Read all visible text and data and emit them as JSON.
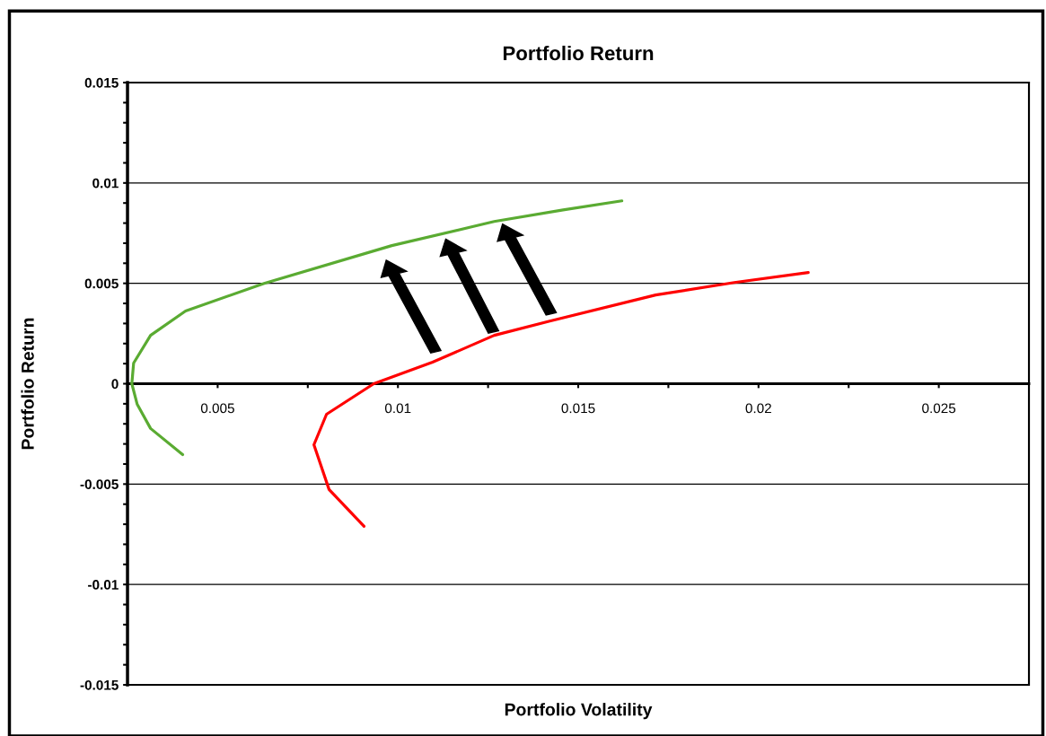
{
  "chart_data": {
    "type": "line",
    "title": "Portfolio Return",
    "xlabel": "Portfolio Volatility",
    "ylabel": "Portfolio Return",
    "xlim": [
      0.0025,
      0.0275
    ],
    "ylim": [
      -0.015,
      0.015
    ],
    "xticks": [
      0.005,
      {
        "value": 0.0075,
        "label": null
      },
      0.01,
      {
        "value": 0.0125,
        "label": null
      },
      0.015,
      {
        "value": 0.0175,
        "label": null
      },
      0.02,
      {
        "value": 0.0225,
        "label": null
      },
      0.025
    ],
    "yticks": [
      -0.015,
      {
        "value": -0.014,
        "label": null
      },
      {
        "value": -0.013,
        "label": null
      },
      {
        "value": -0.012,
        "label": null
      },
      {
        "value": -0.011,
        "label": null
      },
      -0.01,
      {
        "value": -0.009,
        "label": null
      },
      {
        "value": -0.008,
        "label": null
      },
      {
        "value": -0.007,
        "label": null
      },
      {
        "value": -0.006,
        "label": null
      },
      -0.005,
      {
        "value": -0.004,
        "label": null
      },
      {
        "value": -0.003,
        "label": null
      },
      {
        "value": -0.002,
        "label": null
      },
      {
        "value": -0.001,
        "label": null
      },
      0,
      {
        "value": 0.001,
        "label": null
      },
      {
        "value": 0.002,
        "label": null
      },
      {
        "value": 0.003,
        "label": null
      },
      {
        "value": 0.004,
        "label": null
      },
      0.005,
      {
        "value": 0.006,
        "label": null
      },
      {
        "value": 0.007,
        "label": null
      },
      {
        "value": 0.008,
        "label": null
      },
      {
        "value": 0.009,
        "label": null
      },
      0.01,
      {
        "value": 0.011,
        "label": null
      },
      {
        "value": 0.012,
        "label": null
      },
      {
        "value": 0.013,
        "label": null
      },
      {
        "value": 0.014,
        "label": null
      },
      0.015
    ],
    "grid": "y",
    "legend": false,
    "marker": "none",
    "line_style": "solid",
    "series": [
      {
        "color": "#5aab32",
        "x": [
          0.00403,
          0.00314,
          0.00277,
          0.00262,
          0.00267,
          0.00314,
          0.00411,
          0.00629,
          0.00983,
          0.01267,
          0.01458,
          0.01621
        ],
        "values": [
          -0.00353,
          -0.00223,
          -0.00103,
          0.0,
          0.00103,
          0.00241,
          0.00362,
          0.005,
          0.00688,
          0.00808,
          0.00866,
          0.00911
        ]
      },
      {
        "color": "#ff0000",
        "x": [
          0.00906,
          0.00809,
          0.00767,
          0.00802,
          0.00933,
          0.01096,
          0.01267,
          0.01421,
          0.01715,
          0.01933,
          0.02138
        ],
        "values": [
          -0.0071,
          -0.00527,
          -0.00304,
          -0.00152,
          0.0,
          0.00107,
          0.00241,
          0.00312,
          0.00442,
          0.00504,
          0.00554
        ]
      }
    ]
  }
}
